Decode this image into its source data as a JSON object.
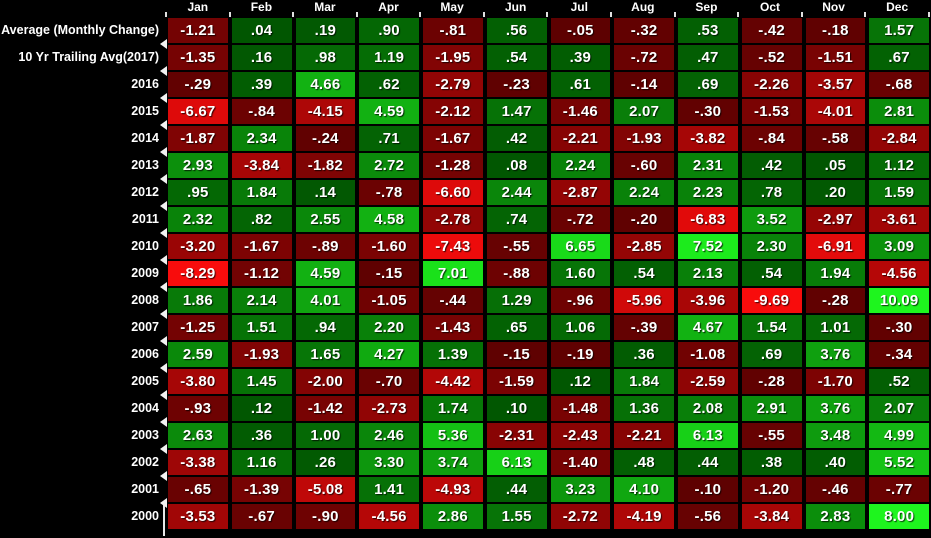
{
  "chart_data": {
    "type": "heatmap",
    "columns": [
      "Jan",
      "Feb",
      "Mar",
      "Apr",
      "May",
      "Jun",
      "Jul",
      "Aug",
      "Sep",
      "Oct",
      "Nov",
      "Dec"
    ],
    "rows": [
      {
        "label": "Average (Monthly Change)",
        "values": [
          "-1.21",
          ".04",
          ".19",
          ".90",
          "-.81",
          ".56",
          "-.05",
          "-.32",
          ".53",
          "-.42",
          "-.18",
          "1.57"
        ]
      },
      {
        "label": "10 Yr Trailing Avg(2017)",
        "values": [
          "-1.35",
          ".16",
          ".98",
          "1.19",
          "-1.95",
          ".54",
          ".39",
          "-.72",
          ".47",
          "-.52",
          "-1.51",
          ".67"
        ]
      },
      {
        "label": "2016",
        "values": [
          "-.29",
          ".39",
          "4.66",
          ".62",
          "-2.79",
          "-.23",
          ".61",
          "-.14",
          ".69",
          "-2.26",
          "-3.57",
          "-.68"
        ]
      },
      {
        "label": "2015",
        "values": [
          "-6.67",
          "-.84",
          "-4.15",
          "4.59",
          "-2.12",
          "1.47",
          "-1.46",
          "2.07",
          "-.30",
          "-1.53",
          "-4.01",
          "2.81"
        ]
      },
      {
        "label": "2014",
        "values": [
          "-1.87",
          "2.34",
          "-.24",
          ".71",
          "-1.67",
          ".42",
          "-2.21",
          "-1.93",
          "-3.82",
          "-.84",
          "-.58",
          "-2.84"
        ]
      },
      {
        "label": "2013",
        "values": [
          "2.93",
          "-3.84",
          "-1.82",
          "2.72",
          "-1.28",
          ".08",
          "2.24",
          "-.60",
          "2.31",
          ".42",
          ".05",
          "1.12"
        ]
      },
      {
        "label": "2012",
        "values": [
          ".95",
          "1.84",
          ".14",
          "-.78",
          "-6.60",
          "2.44",
          "-2.87",
          "2.24",
          "2.23",
          ".78",
          ".20",
          "1.59"
        ]
      },
      {
        "label": "2011",
        "values": [
          "2.32",
          ".82",
          "2.55",
          "4.58",
          "-2.78",
          ".74",
          "-.72",
          "-.20",
          "-6.83",
          "3.52",
          "-2.97",
          "-3.61"
        ]
      },
      {
        "label": "2010",
        "values": [
          "-3.20",
          "-1.67",
          "-.89",
          "-1.60",
          "-7.43",
          "-.55",
          "6.65",
          "-2.85",
          "7.52",
          "2.30",
          "-6.91",
          "3.09"
        ]
      },
      {
        "label": "2009",
        "values": [
          "-8.29",
          "-1.12",
          "4.59",
          "-.15",
          "7.01",
          "-.88",
          "1.60",
          ".54",
          "2.13",
          ".54",
          "1.94",
          "-4.56"
        ]
      },
      {
        "label": "2008",
        "values": [
          "1.86",
          "2.14",
          "4.01",
          "-1.05",
          "-.44",
          "1.29",
          "-.96",
          "-5.96",
          "-3.96",
          "-9.69",
          "-.28",
          "10.09"
        ]
      },
      {
        "label": "2007",
        "values": [
          "-1.25",
          "1.51",
          ".94",
          "2.20",
          "-1.43",
          ".65",
          "1.06",
          "-.39",
          "4.67",
          "1.54",
          "1.01",
          "-.30"
        ]
      },
      {
        "label": "2006",
        "values": [
          "2.59",
          "-1.93",
          "1.65",
          "4.27",
          "1.39",
          "-.15",
          "-.19",
          ".36",
          "-1.08",
          ".69",
          "3.76",
          "-.34"
        ]
      },
      {
        "label": "2005",
        "values": [
          "-3.80",
          "1.45",
          "-2.00",
          "-.70",
          "-4.42",
          "-1.59",
          ".12",
          "1.84",
          "-2.59",
          "-.28",
          "-1.70",
          ".52"
        ]
      },
      {
        "label": "2004",
        "values": [
          "-.93",
          ".12",
          "-1.42",
          "-2.73",
          "1.74",
          ".10",
          "-1.48",
          "1.36",
          "2.08",
          "2.91",
          "3.76",
          "2.07"
        ]
      },
      {
        "label": "2003",
        "values": [
          "2.63",
          ".36",
          "1.00",
          "2.46",
          "5.36",
          "-2.31",
          "-2.43",
          "-2.21",
          "6.13",
          "-.55",
          "3.48",
          "4.99"
        ]
      },
      {
        "label": "2002",
        "values": [
          "-3.38",
          "1.16",
          ".26",
          "3.30",
          "3.74",
          "6.13",
          "-1.40",
          ".48",
          ".44",
          ".38",
          ".40",
          "5.52"
        ]
      },
      {
        "label": "2001",
        "values": [
          "-.65",
          "-1.39",
          "-5.08",
          "1.41",
          "-4.93",
          ".44",
          "3.23",
          "4.10",
          "-.10",
          "-1.20",
          "-.46",
          "-.77"
        ]
      },
      {
        "label": "2000",
        "values": [
          "-3.53",
          "-.67",
          "-.90",
          "-4.56",
          "2.86",
          "1.55",
          "-2.72",
          "-4.19",
          "-.56",
          "-3.84",
          "2.83",
          "8.00"
        ]
      }
    ],
    "layout": {
      "legend": "none",
      "grid": "black gaps between cells",
      "background": "#000000",
      "text_color": "#ffffff"
    },
    "color_scale": {
      "negative_dark": "#5c0101",
      "negative_bright": "#f80c0c",
      "positive_dark": "#015501",
      "positive_bright": "#1ef51e",
      "max_abs": 8
    }
  }
}
